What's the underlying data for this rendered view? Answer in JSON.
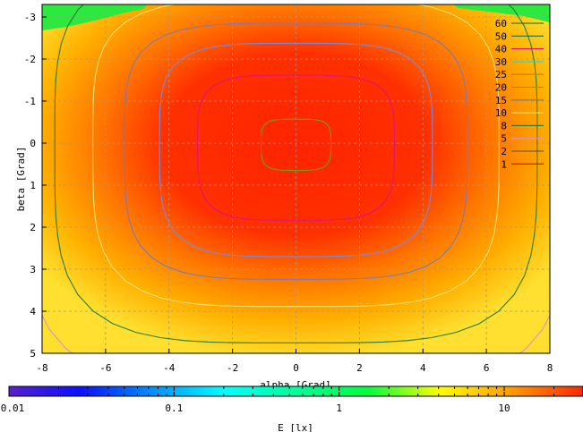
{
  "chart_data": {
    "type": "heatmap",
    "title": "",
    "xlabel": "alpha [Grad]",
    "ylabel": "beta [Grad]",
    "xlim": [
      -8,
      8
    ],
    "ylim": [
      -3.3,
      5
    ],
    "x_ticks": [
      "-8",
      "-6",
      "-4",
      "-2",
      "0",
      "2",
      "4",
      "6",
      "8"
    ],
    "y_ticks": [
      "-3",
      "-2",
      "-1",
      "0",
      "1",
      "2",
      "3",
      "4",
      "5"
    ],
    "grid": true,
    "colorbar": {
      "label": "E [lx]",
      "scale": "log",
      "range": [
        0.01,
        30
      ],
      "ticks": [
        "0.01",
        "0.1",
        "1",
        "10"
      ],
      "colors": [
        "#5a1fc9",
        "#0a10ff",
        "#0090ff",
        "#00ffff",
        "#00ff9a",
        "#00ff3c",
        "#ffff00",
        "#ff9a00",
        "#ff2800"
      ]
    },
    "legend": {
      "position": "top-right",
      "entries": [
        {
          "label": "60",
          "color": "#0a6a0a"
        },
        {
          "label": "50",
          "color": "#1f6f3f"
        },
        {
          "label": "40",
          "color": "#e0147a"
        },
        {
          "label": "30",
          "color": "#30d0d0"
        },
        {
          "label": "25",
          "color": "#d07020"
        },
        {
          "label": "20",
          "color": "#6a7ad8"
        },
        {
          "label": "15",
          "color": "#5a7ab0"
        },
        {
          "label": "10",
          "color": "#ffe070"
        },
        {
          "label": "8",
          "color": "#2a7a2a"
        },
        {
          "label": "5",
          "color": "#e090c0"
        },
        {
          "label": "2",
          "color": "#555555"
        },
        {
          "label": "1",
          "color": "#cc0000"
        }
      ]
    },
    "contours": [
      {
        "level": "60",
        "color": "#6aa020",
        "rx": 1.1,
        "ry": 0.6
      },
      {
        "level": "40",
        "color": "#e0147a",
        "rx": 3.1,
        "ry": 1.7
      },
      {
        "level": "20",
        "color": "#7a88e0",
        "rx": 4.3,
        "ry": 2.5
      },
      {
        "level": "15",
        "color": "#7a7ab8",
        "rx": 5.4,
        "ry": 3.0
      },
      {
        "level": "10",
        "color": "#ffe070",
        "rx": 6.4,
        "ry": 3.6
      },
      {
        "level": "8",
        "color": "#2a7a2a",
        "rx": 7.6,
        "ry": 4.4
      },
      {
        "level": "5",
        "color": "#e090c0",
        "rx": 8.6,
        "ry": 5.4
      }
    ]
  }
}
